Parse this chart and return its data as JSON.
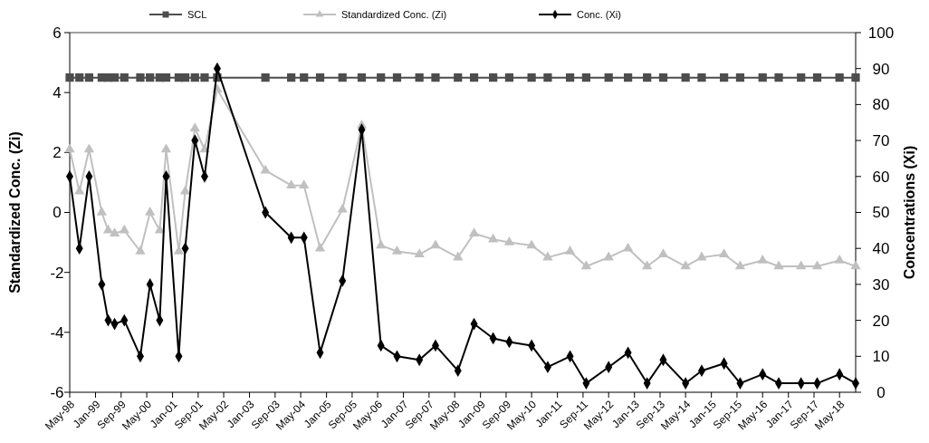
{
  "chart_data": {
    "type": "line",
    "x": [
      "1998-05",
      "1998-08",
      "1998-11",
      "1999-03",
      "1999-05",
      "1999-07",
      "1999-10",
      "2000-03",
      "2000-06",
      "2000-09",
      "2000-11",
      "2001-03",
      "2001-05",
      "2001-08",
      "2001-11",
      "2002-03",
      "2003-06",
      "2004-02",
      "2004-06",
      "2004-11",
      "2005-06",
      "2005-12",
      "2006-06",
      "2006-11",
      "2007-06",
      "2007-11",
      "2008-06",
      "2008-11",
      "2009-05",
      "2009-10",
      "2010-05",
      "2010-10",
      "2011-05",
      "2011-10",
      "2012-05",
      "2012-11",
      "2013-05",
      "2013-10",
      "2014-05",
      "2014-10",
      "2015-05",
      "2015-10",
      "2016-05",
      "2016-10",
      "2017-05",
      "2017-10",
      "2018-05",
      "2018-10"
    ],
    "series": [
      {
        "name": "SCL",
        "color": "#4d4d4d",
        "marker": "square",
        "values": [
          4.5,
          4.5,
          4.5,
          4.5,
          4.5,
          4.5,
          4.5,
          4.5,
          4.5,
          4.5,
          4.5,
          4.5,
          4.5,
          4.5,
          4.5,
          4.5,
          4.5,
          4.5,
          4.5,
          4.5,
          4.5,
          4.5,
          4.5,
          4.5,
          4.5,
          4.5,
          4.5,
          4.5,
          4.5,
          4.5,
          4.5,
          4.5,
          4.5,
          4.5,
          4.5,
          4.5,
          4.5,
          4.5,
          4.5,
          4.5,
          4.5,
          4.5,
          4.5,
          4.5,
          4.5,
          4.5,
          4.5,
          4.5
        ]
      },
      {
        "name": "Standardized Conc. (Zi)",
        "color": "#c0c0c0",
        "marker": "triangle",
        "values": [
          2.1,
          0.7,
          2.1,
          0.0,
          -0.6,
          -0.7,
          -0.6,
          -1.3,
          0.0,
          -0.6,
          2.1,
          -1.3,
          0.7,
          2.8,
          2.1,
          4.1,
          1.4,
          0.9,
          0.9,
          -1.2,
          0.1,
          2.9,
          -1.1,
          -1.3,
          -1.4,
          -1.1,
          -1.5,
          -0.7,
          -0.9,
          -1.0,
          -1.1,
          -1.5,
          -1.3,
          -1.8,
          -1.5,
          -1.2,
          -1.8,
          -1.4,
          -1.8,
          -1.5,
          -1.4,
          -1.8,
          -1.6,
          -1.8,
          -1.8,
          -1.8,
          -1.6,
          -1.8
        ]
      },
      {
        "name": "Conc. (Xi)",
        "color": "#000000",
        "marker": "diamond",
        "axis": "y2",
        "values": [
          60,
          40,
          60,
          30,
          20,
          19,
          20,
          10,
          30,
          20,
          60,
          10,
          40,
          70,
          60,
          90,
          50,
          43,
          43,
          11,
          31,
          73,
          13,
          10,
          9,
          13,
          6,
          19,
          15,
          14,
          13,
          7,
          10,
          2.5,
          7,
          11,
          2.5,
          9,
          2.5,
          6,
          8,
          2.5,
          5,
          2.5,
          2.5,
          2.5,
          5,
          2.5
        ]
      }
    ],
    "ylabel": "Standardized Conc. (Zi)",
    "y2label": "Concentrations (Xi)",
    "xlim": [
      "1998-05",
      "2018-10"
    ],
    "xticks": [
      {
        "value": "1998-05",
        "label": "May-98"
      },
      {
        "value": "1999-01",
        "label": "Jan-99"
      },
      {
        "value": "1999-09",
        "label": "Sep-99"
      },
      {
        "value": "2000-05",
        "label": "May-00"
      },
      {
        "value": "2001-01",
        "label": "Jan-01"
      },
      {
        "value": "2001-09",
        "label": "Sep-01"
      },
      {
        "value": "2002-05",
        "label": "May-02"
      },
      {
        "value": "2003-01",
        "label": "Jan-03"
      },
      {
        "value": "2003-09",
        "label": "Sep-03"
      },
      {
        "value": "2004-05",
        "label": "May-04"
      },
      {
        "value": "2005-01",
        "label": "Jan-05"
      },
      {
        "value": "2005-09",
        "label": "Sep-05"
      },
      {
        "value": "2006-05",
        "label": "May-06"
      },
      {
        "value": "2007-01",
        "label": "Jan-07"
      },
      {
        "value": "2007-09",
        "label": "Sep-07"
      },
      {
        "value": "2008-05",
        "label": "May-08"
      },
      {
        "value": "2009-01",
        "label": "Jan-09"
      },
      {
        "value": "2009-09",
        "label": "Sep-09"
      },
      {
        "value": "2010-05",
        "label": "May-10"
      },
      {
        "value": "2011-01",
        "label": "Jan-11"
      },
      {
        "value": "2011-09",
        "label": "Sep-11"
      },
      {
        "value": "2012-05",
        "label": "May-12"
      },
      {
        "value": "2013-01",
        "label": "Jan-13"
      },
      {
        "value": "2013-09",
        "label": "Sep-13"
      },
      {
        "value": "2014-05",
        "label": "May-14"
      },
      {
        "value": "2015-01",
        "label": "Jan-15"
      },
      {
        "value": "2015-09",
        "label": "Sep-15"
      },
      {
        "value": "2016-05",
        "label": "May-16"
      },
      {
        "value": "2017-01",
        "label": "Jan-17"
      },
      {
        "value": "2017-09",
        "label": "Sep-17"
      },
      {
        "value": "2018-05",
        "label": "May-18"
      }
    ],
    "ylim": [
      -6,
      6
    ],
    "yticks": [
      -6,
      -4,
      -2,
      0,
      2,
      4,
      6
    ],
    "y2lim": [
      0,
      100
    ],
    "y2ticks": [
      0,
      10,
      20,
      30,
      40,
      50,
      60,
      70,
      80,
      90,
      100
    ],
    "legend": "top",
    "grid": false,
    "line_style": "solid"
  }
}
